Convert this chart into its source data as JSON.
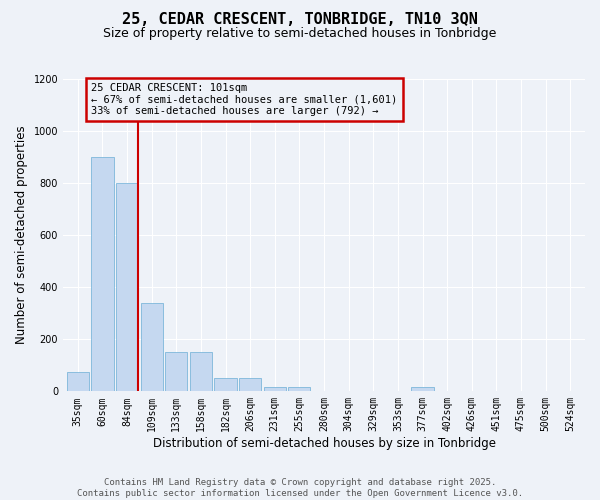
{
  "title_line1": "25, CEDAR CRESCENT, TONBRIDGE, TN10 3QN",
  "title_line2": "Size of property relative to semi-detached houses in Tonbridge",
  "xlabel": "Distribution of semi-detached houses by size in Tonbridge",
  "ylabel": "Number of semi-detached properties",
  "categories": [
    "35sqm",
    "60sqm",
    "84sqm",
    "109sqm",
    "133sqm",
    "158sqm",
    "182sqm",
    "206sqm",
    "231sqm",
    "255sqm",
    "280sqm",
    "304sqm",
    "329sqm",
    "353sqm",
    "377sqm",
    "402sqm",
    "426sqm",
    "451sqm",
    "475sqm",
    "500sqm",
    "524sqm"
  ],
  "values": [
    75,
    900,
    800,
    340,
    150,
    150,
    50,
    50,
    15,
    15,
    0,
    0,
    0,
    0,
    15,
    0,
    0,
    0,
    0,
    0,
    0
  ],
  "bar_color": "#c5d8f0",
  "bar_edge_color": "#6baed6",
  "ref_line_color": "#cc0000",
  "annotation_text": "25 CEDAR CRESCENT: 101sqm\n← 67% of semi-detached houses are smaller (1,601)\n33% of semi-detached houses are larger (792) →",
  "annotation_box_color": "#cc0000",
  "background_color": "#eef2f8",
  "ylim": [
    0,
    1200
  ],
  "yticks": [
    0,
    200,
    400,
    600,
    800,
    1000,
    1200
  ],
  "footer_text": "Contains HM Land Registry data © Crown copyright and database right 2025.\nContains public sector information licensed under the Open Government Licence v3.0.",
  "title_fontsize": 11,
  "subtitle_fontsize": 9,
  "tick_fontsize": 7,
  "label_fontsize": 8.5
}
